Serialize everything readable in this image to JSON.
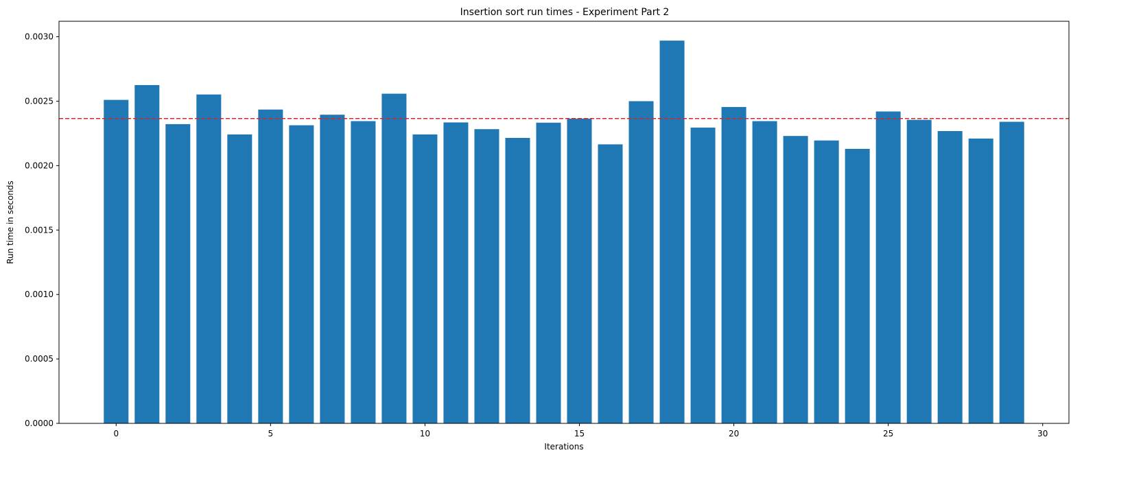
{
  "chart_data": {
    "type": "bar",
    "title": "Insertion sort run times - Experiment Part 2",
    "xlabel": "Iterations",
    "ylabel": "Run time in seconds",
    "x": [
      0,
      1,
      2,
      3,
      4,
      5,
      6,
      7,
      8,
      9,
      10,
      11,
      12,
      13,
      14,
      15,
      16,
      17,
      18,
      19,
      20,
      21,
      22,
      23,
      24,
      25,
      26,
      27,
      28,
      29
    ],
    "values": [
      0.00251,
      0.002625,
      0.002322,
      0.002552,
      0.002242,
      0.002435,
      0.002313,
      0.002395,
      0.002345,
      0.002558,
      0.002242,
      0.002335,
      0.002283,
      0.002215,
      0.002333,
      0.002365,
      0.002165,
      0.0025,
      0.00297,
      0.002295,
      0.002455,
      0.002345,
      0.00223,
      0.002195,
      0.00213,
      0.00242,
      0.002355,
      0.002268,
      0.00221,
      0.00234
    ],
    "bar_color": "#1f77b4",
    "mean_line": {
      "value": 0.002365,
      "color": "#d62728",
      "style": "dashed"
    },
    "xlim": [
      -1.85,
      30.85
    ],
    "ylim": [
      0,
      0.00312
    ],
    "x_ticks": [
      {
        "value": 0,
        "label": "0"
      },
      {
        "value": 5,
        "label": "5"
      },
      {
        "value": 10,
        "label": "10"
      },
      {
        "value": 15,
        "label": "15"
      },
      {
        "value": 20,
        "label": "20"
      },
      {
        "value": 25,
        "label": "25"
      },
      {
        "value": 30,
        "label": "30"
      }
    ],
    "y_ticks": [
      {
        "value": 0,
        "label": "0.0000"
      },
      {
        "value": 0.0005,
        "label": "0.0005"
      },
      {
        "value": 0.001,
        "label": "0.0010"
      },
      {
        "value": 0.0015,
        "label": "0.0015"
      },
      {
        "value": 0.002,
        "label": "0.0020"
      },
      {
        "value": 0.0025,
        "label": "0.0025"
      },
      {
        "value": 0.003,
        "label": "0.0030"
      }
    ],
    "grid": false,
    "legend": "none"
  }
}
